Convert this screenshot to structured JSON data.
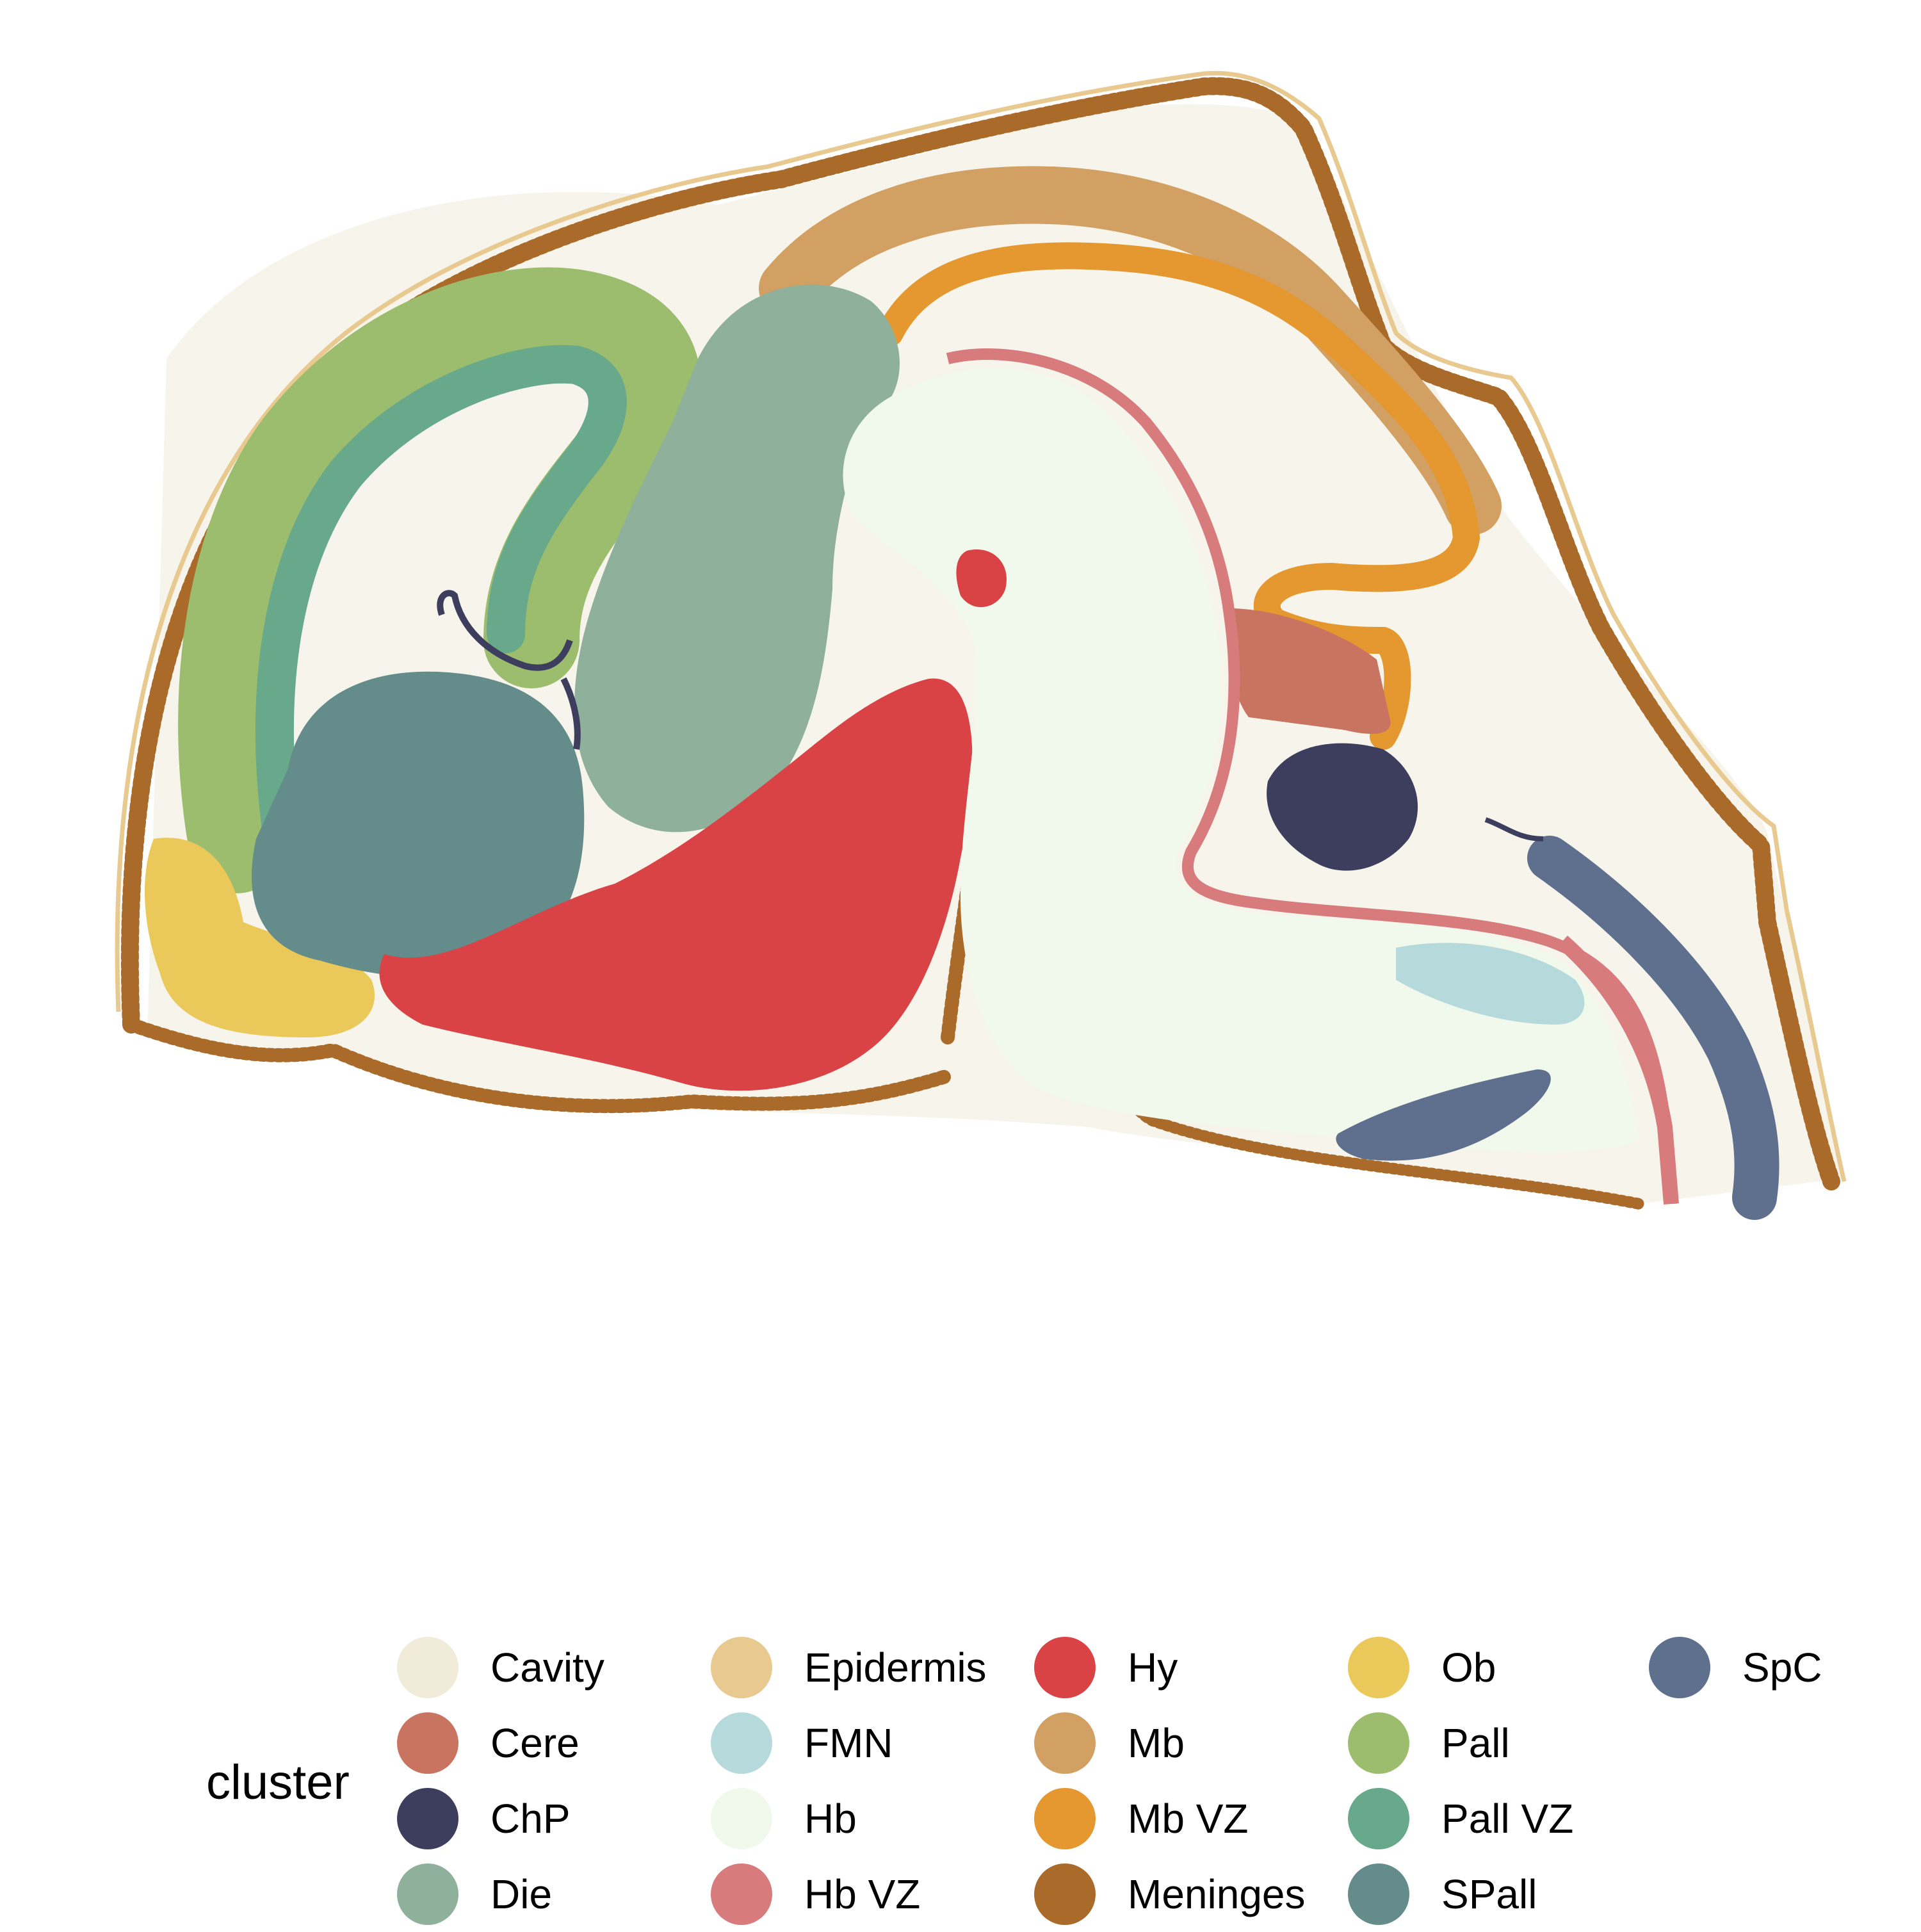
{
  "chart_data": {
    "type": "scatter",
    "title": "",
    "xlabel": "",
    "ylabel": "",
    "grid": false,
    "legend": {
      "title": "cluster",
      "placement": "bottom"
    },
    "series": [
      {
        "name": "Cavity",
        "color": "#F1ECDA"
      },
      {
        "name": "Cere",
        "color": "#C87460"
      },
      {
        "name": "ChP",
        "color": "#3D3E5E"
      },
      {
        "name": "Die",
        "color": "#8FB09A"
      },
      {
        "name": "Epidermis",
        "color": "#E8C98F"
      },
      {
        "name": "FMN",
        "color": "#B6DADB"
      },
      {
        "name": "Hb",
        "color": "#F1F8EC"
      },
      {
        "name": "Hb VZ",
        "color": "#D77B7D"
      },
      {
        "name": "Hy",
        "color": "#D94346"
      },
      {
        "name": "Mb",
        "color": "#D1A062"
      },
      {
        "name": "Mb VZ",
        "color": "#E4982F"
      },
      {
        "name": "Meninges",
        "color": "#AA6A2A"
      },
      {
        "name": "Ob",
        "color": "#EAC85A"
      },
      {
        "name": "Pall",
        "color": "#9BBD6D"
      },
      {
        "name": "Pall VZ",
        "color": "#67A98A"
      },
      {
        "name": "SPall",
        "color": "#648C8A"
      },
      {
        "name": "SpC",
        "color": "#5E708D"
      }
    ]
  }
}
